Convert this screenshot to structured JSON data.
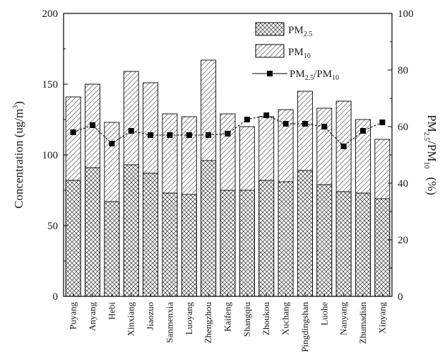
{
  "chart_data": {
    "type": "bar",
    "categories": [
      "Puyang",
      "Anyang",
      "Hebi",
      "Xinxiang",
      "Jiaozuo",
      "Sanmenxia",
      "Luoyang",
      "Zhengzhou",
      "Kaifeng",
      "Shangqiu",
      "Zhoukou",
      "Xuchang",
      "Pingdingshan",
      "Luohe",
      "Nanyang",
      "Zhumadian",
      "Xinyang"
    ],
    "series": [
      {
        "name": "PM2.5",
        "values": [
          82,
          91,
          67,
          93,
          87,
          73,
          72,
          96,
          75,
          75,
          82,
          81,
          89,
          79,
          74,
          73,
          69
        ]
      },
      {
        "name": "PM10",
        "values": [
          141,
          150,
          123,
          159,
          151,
          129,
          127,
          167,
          129,
          120,
          127,
          132,
          145,
          133,
          138,
          125,
          111
        ]
      },
      {
        "name": "PM2.5/PM10",
        "values": [
          58,
          60.5,
          54,
          58.5,
          57,
          57,
          57,
          57,
          57.5,
          62.5,
          64,
          61,
          61,
          60,
          53,
          58.5,
          61.5
        ]
      }
    ],
    "ylabel": "Concentration (ug/m3)",
    "y2label": "PM2.5/PM10 (%)",
    "ylim": [
      0,
      200
    ],
    "y2lim": [
      0,
      100
    ],
    "yticks": [
      "0",
      "50",
      "100",
      "150",
      "200"
    ],
    "y2ticks": [
      "0",
      "20",
      "40",
      "60",
      "80",
      "100"
    ],
    "legend": {
      "placement": "top-right",
      "pm25_main": "PM",
      "pm25_sub": "2.5",
      "pm10_main": "PM",
      "pm10_sub": "10",
      "ratio_main_a": "PM",
      "ratio_sub_a": "2.5",
      "ratio_slash": "/PM",
      "ratio_sub_b": "10"
    },
    "ylabel_parts": {
      "main": "Concentration (ug/m",
      "sup": "3",
      "close": ")"
    },
    "y2label_parts": {
      "a": "PM",
      "sub_a": "2.5",
      "slash": "/PM",
      "sub_b": "10",
      "unit": "(%)"
    }
  }
}
